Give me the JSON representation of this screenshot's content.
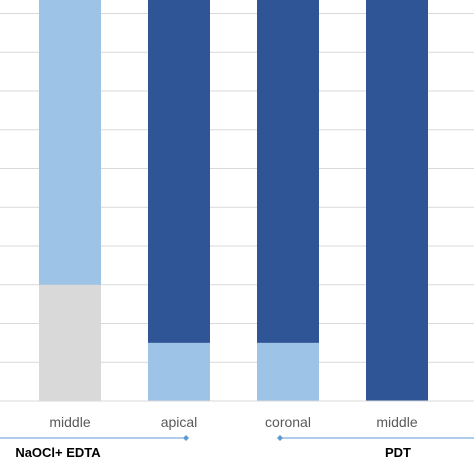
{
  "chart_data": {
    "type": "bar",
    "stacked": true,
    "stack_mode": "percent",
    "categories": [
      "middle",
      "apical",
      "coronal",
      "middle"
    ],
    "groups": [
      {
        "label": "NaOCl+ EDTA",
        "categories": [
          0,
          1
        ]
      },
      {
        "label": "PDT",
        "categories": [
          2,
          3
        ]
      }
    ],
    "series": [
      {
        "values": [
          25,
          0,
          0,
          0
        ],
        "color": "#d9d9d9"
      },
      {
        "values": [
          75,
          12.5,
          12.5,
          0
        ],
        "color": "#9dc3e6"
      },
      {
        "values": [
          0,
          87.5,
          87.5,
          100
        ],
        "color": "#2f5597"
      }
    ],
    "ylim": [
      0,
      100
    ],
    "grid": true,
    "gridline_color": "#d9d9d9",
    "group_line_color": "#5b9bd5"
  }
}
